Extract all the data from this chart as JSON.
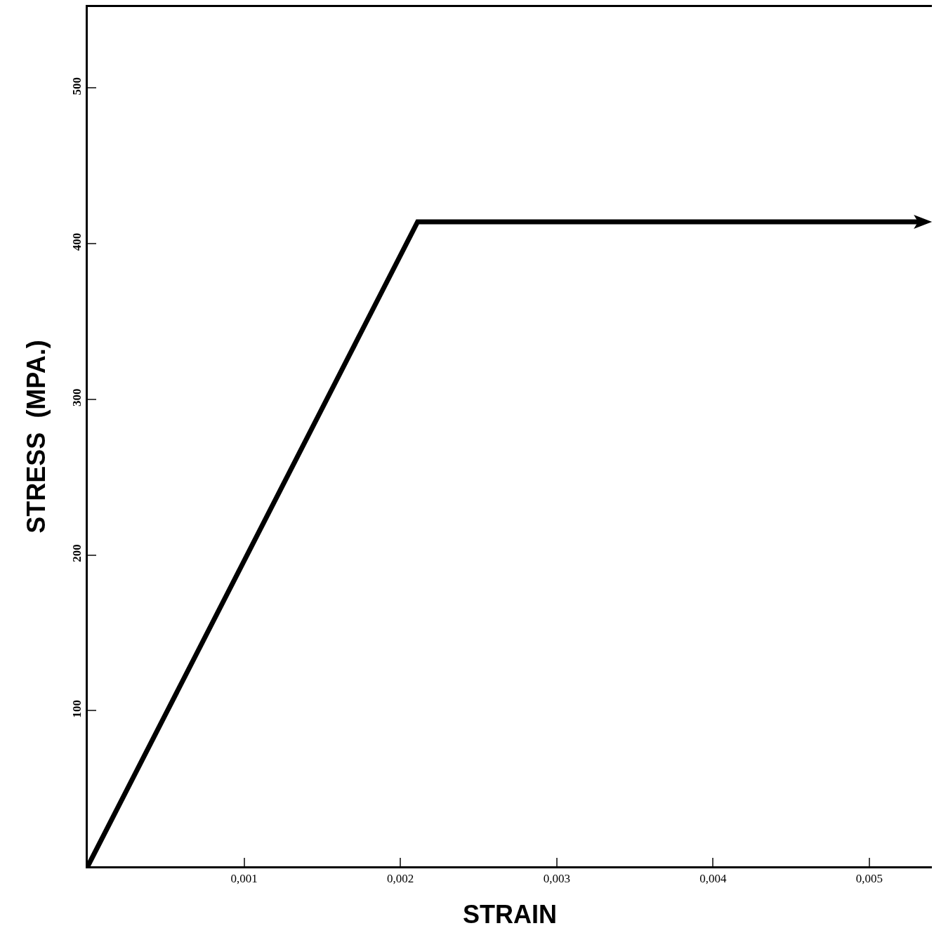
{
  "chart_data": {
    "type": "line",
    "xlabel": "STRAIN",
    "ylabel": "STRESS  (MPA.)",
    "x": [
      0,
      0.00211,
      0.00532
    ],
    "series": [
      {
        "color": "#000000",
        "values": [
          0,
          414,
          414
        ]
      }
    ],
    "xlim": [
      0,
      0.0054
    ],
    "ylim": [
      0,
      552
    ],
    "xticks": [
      {
        "value": 0.001,
        "label": "0,001"
      },
      {
        "value": 0.002,
        "label": "0,002"
      },
      {
        "value": 0.003,
        "label": "0,003"
      },
      {
        "value": 0.004,
        "label": "0,004"
      },
      {
        "value": 0.005,
        "label": "0,005"
      }
    ],
    "yticks": [
      100,
      200,
      300,
      400,
      500
    ],
    "marker": "none",
    "line_style": "solid"
  }
}
